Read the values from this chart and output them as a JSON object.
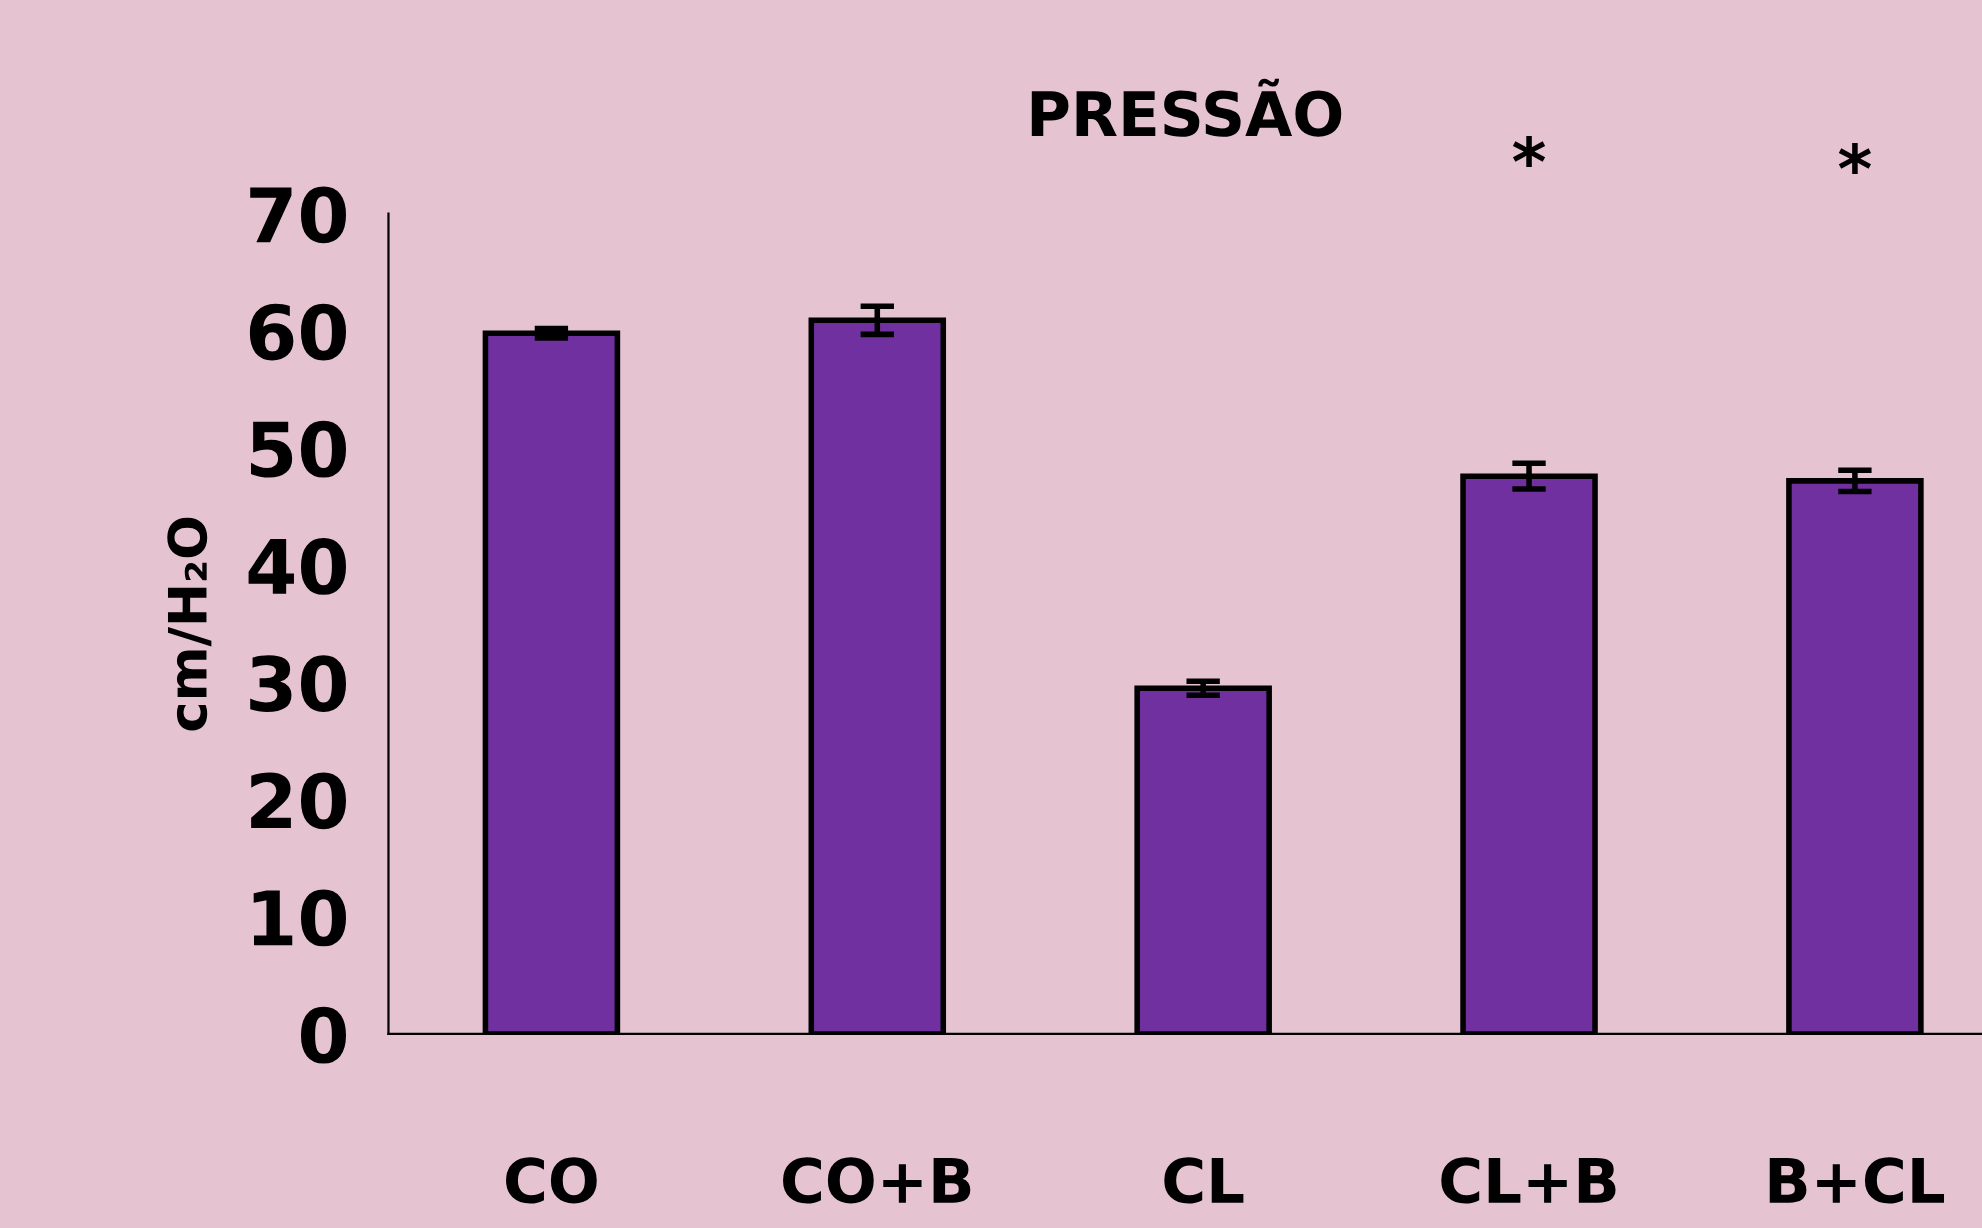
{
  "chart_data": {
    "type": "bar",
    "title": "PRESSÃO",
    "ylabel": "cm/H₂O",
    "categories": [
      "CO",
      "CO+B",
      "CL",
      "CL+B",
      "B+CL"
    ],
    "values": [
      59.8,
      60.9,
      29.5,
      47.6,
      47.2
    ],
    "errors": [
      0.4,
      1.2,
      0.6,
      1.1,
      0.9
    ],
    "color": "#7030a0",
    "ylim": [
      0,
      70
    ],
    "yticks": [
      0,
      10,
      20,
      30,
      40,
      50,
      60,
      70
    ],
    "annotations": [
      "*",
      "*"
    ],
    "grid": false,
    "legend": false
  }
}
